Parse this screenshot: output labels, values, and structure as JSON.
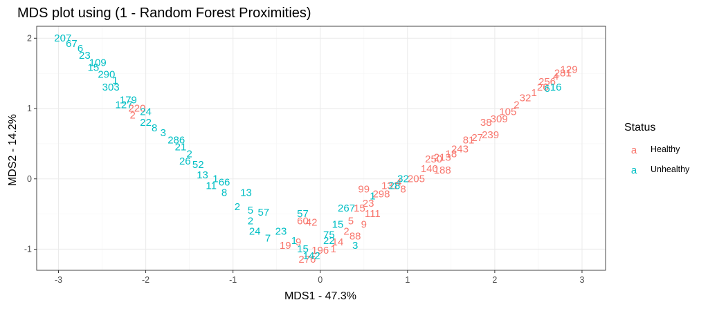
{
  "chart_data": {
    "type": "scatter",
    "title": "MDS plot using (1 - Random Forest Proximities)",
    "xlabel": "MDS1 - 47.3%",
    "ylabel": "MDS2 - 14.2%",
    "xlim": [
      -3.25,
      3.27
    ],
    "ylim": [
      -1.3,
      2.17
    ],
    "xticks": [
      -3,
      -2,
      -1,
      0,
      1,
      2,
      3
    ],
    "yticks": [
      -1,
      0,
      1,
      2
    ],
    "grid": true,
    "legend": {
      "title": "Status",
      "placement": "right",
      "key_glyph": "a",
      "entries": [
        {
          "name": "Healthy",
          "color": "#F8766D"
        },
        {
          "name": "Unhealthy",
          "color": "#00BFC4"
        }
      ]
    },
    "series": [
      {
        "name": "Healthy",
        "color": "#F8766D",
        "points": [
          {
            "x": 2.85,
            "y": 1.55,
            "label": "129"
          },
          {
            "x": 2.78,
            "y": 1.5,
            "label": "281"
          },
          {
            "x": 2.7,
            "y": 1.45,
            "label": "4"
          },
          {
            "x": 2.6,
            "y": 1.38,
            "label": "256"
          },
          {
            "x": 2.55,
            "y": 1.3,
            "label": "26"
          },
          {
            "x": 2.45,
            "y": 1.22,
            "label": "1"
          },
          {
            "x": 2.35,
            "y": 1.15,
            "label": "32"
          },
          {
            "x": 2.25,
            "y": 1.05,
            "label": "2"
          },
          {
            "x": 2.15,
            "y": 0.95,
            "label": "105"
          },
          {
            "x": 2.05,
            "y": 0.85,
            "label": "309"
          },
          {
            "x": 1.9,
            "y": 0.8,
            "label": "38"
          },
          {
            "x": 1.95,
            "y": 0.62,
            "label": "239"
          },
          {
            "x": 1.8,
            "y": 0.58,
            "label": "27"
          },
          {
            "x": 1.7,
            "y": 0.55,
            "label": "81"
          },
          {
            "x": 1.6,
            "y": 0.42,
            "label": "243"
          },
          {
            "x": 1.5,
            "y": 0.35,
            "label": "18"
          },
          {
            "x": 1.4,
            "y": 0.3,
            "label": "213"
          },
          {
            "x": 1.3,
            "y": 0.28,
            "label": "250"
          },
          {
            "x": 1.25,
            "y": 0.14,
            "label": "140"
          },
          {
            "x": 1.4,
            "y": 0.12,
            "label": "188"
          },
          {
            "x": 1.1,
            "y": 0.0,
            "label": "205"
          },
          {
            "x": 0.9,
            "y": -0.05,
            "label": "4"
          },
          {
            "x": 0.8,
            "y": -0.1,
            "label": "131"
          },
          {
            "x": 0.95,
            "y": -0.15,
            "label": "8"
          },
          {
            "x": 0.7,
            "y": -0.22,
            "label": "298"
          },
          {
            "x": 0.5,
            "y": -0.15,
            "label": "99"
          },
          {
            "x": 0.55,
            "y": -0.35,
            "label": "23"
          },
          {
            "x": 0.45,
            "y": -0.42,
            "label": "15"
          },
          {
            "x": 0.6,
            "y": -0.5,
            "label": "111"
          },
          {
            "x": 0.35,
            "y": -0.6,
            "label": "5"
          },
          {
            "x": 0.5,
            "y": -0.65,
            "label": "9"
          },
          {
            "x": 0.3,
            "y": -0.75,
            "label": "2"
          },
          {
            "x": 0.4,
            "y": -0.82,
            "label": "88"
          },
          {
            "x": 0.2,
            "y": -0.9,
            "label": "14"
          },
          {
            "x": 0.15,
            "y": -1.0,
            "label": "1"
          },
          {
            "x": 0.0,
            "y": -1.02,
            "label": "196"
          },
          {
            "x": -0.25,
            "y": -0.9,
            "label": "9"
          },
          {
            "x": -0.2,
            "y": -0.6,
            "label": "60"
          },
          {
            "x": -0.1,
            "y": -0.62,
            "label": "42"
          },
          {
            "x": -0.4,
            "y": -0.95,
            "label": "19"
          },
          {
            "x": -0.15,
            "y": -1.15,
            "label": "276"
          },
          {
            "x": -2.1,
            "y": 1.0,
            "label": "220"
          },
          {
            "x": -2.15,
            "y": 0.9,
            "label": "2"
          }
        ]
      },
      {
        "name": "Unhealthy",
        "color": "#00BFC4",
        "points": [
          {
            "x": -2.95,
            "y": 2.0,
            "label": "207"
          },
          {
            "x": -2.85,
            "y": 1.92,
            "label": "67"
          },
          {
            "x": -2.75,
            "y": 1.85,
            "label": "6"
          },
          {
            "x": -2.7,
            "y": 1.75,
            "label": "23"
          },
          {
            "x": -2.55,
            "y": 1.65,
            "label": "109"
          },
          {
            "x": -2.6,
            "y": 1.58,
            "label": "15"
          },
          {
            "x": -2.45,
            "y": 1.48,
            "label": "290"
          },
          {
            "x": -2.35,
            "y": 1.4,
            "label": "1"
          },
          {
            "x": -2.4,
            "y": 1.3,
            "label": "303"
          },
          {
            "x": -2.2,
            "y": 1.12,
            "label": "179"
          },
          {
            "x": -2.25,
            "y": 1.05,
            "label": "127"
          },
          {
            "x": -2.0,
            "y": 0.95,
            "label": "24"
          },
          {
            "x": -2.0,
            "y": 0.8,
            "label": "22"
          },
          {
            "x": -1.9,
            "y": 0.72,
            "label": "8"
          },
          {
            "x": -1.8,
            "y": 0.65,
            "label": "3"
          },
          {
            "x": -1.65,
            "y": 0.55,
            "label": "286"
          },
          {
            "x": -1.6,
            "y": 0.45,
            "label": "21"
          },
          {
            "x": -1.5,
            "y": 0.35,
            "label": "2"
          },
          {
            "x": -1.55,
            "y": 0.25,
            "label": "26"
          },
          {
            "x": -1.4,
            "y": 0.2,
            "label": "52"
          },
          {
            "x": -1.35,
            "y": 0.05,
            "label": "13"
          },
          {
            "x": -1.2,
            "y": 0.0,
            "label": "1"
          },
          {
            "x": -1.1,
            "y": -0.05,
            "label": "66"
          },
          {
            "x": -1.25,
            "y": -0.1,
            "label": "11"
          },
          {
            "x": -1.1,
            "y": -0.2,
            "label": "8"
          },
          {
            "x": -0.85,
            "y": -0.2,
            "label": "13"
          },
          {
            "x": -0.95,
            "y": -0.4,
            "label": "2"
          },
          {
            "x": -0.8,
            "y": -0.45,
            "label": "5"
          },
          {
            "x": -0.65,
            "y": -0.48,
            "label": "57"
          },
          {
            "x": -0.8,
            "y": -0.6,
            "label": "2"
          },
          {
            "x": -0.75,
            "y": -0.75,
            "label": "24"
          },
          {
            "x": -0.6,
            "y": -0.85,
            "label": "7"
          },
          {
            "x": -0.45,
            "y": -0.75,
            "label": "23"
          },
          {
            "x": -0.3,
            "y": -0.88,
            "label": "1"
          },
          {
            "x": -0.2,
            "y": -1.0,
            "label": "15"
          },
          {
            "x": -0.1,
            "y": -1.1,
            "label": "142"
          },
          {
            "x": 0.1,
            "y": -0.88,
            "label": "22"
          },
          {
            "x": -0.2,
            "y": -0.5,
            "label": "57"
          },
          {
            "x": 0.1,
            "y": -0.8,
            "label": "75"
          },
          {
            "x": 0.2,
            "y": -0.65,
            "label": "15"
          },
          {
            "x": 0.3,
            "y": -0.42,
            "label": "267"
          },
          {
            "x": 0.4,
            "y": -0.95,
            "label": "3"
          },
          {
            "x": 0.6,
            "y": -0.25,
            "label": "1"
          },
          {
            "x": 0.85,
            "y": -0.1,
            "label": "28"
          },
          {
            "x": 0.95,
            "y": 0.0,
            "label": "32"
          },
          {
            "x": 2.6,
            "y": 1.28,
            "label": "6"
          },
          {
            "x": 2.7,
            "y": 1.3,
            "label": "16"
          }
        ]
      }
    ]
  }
}
